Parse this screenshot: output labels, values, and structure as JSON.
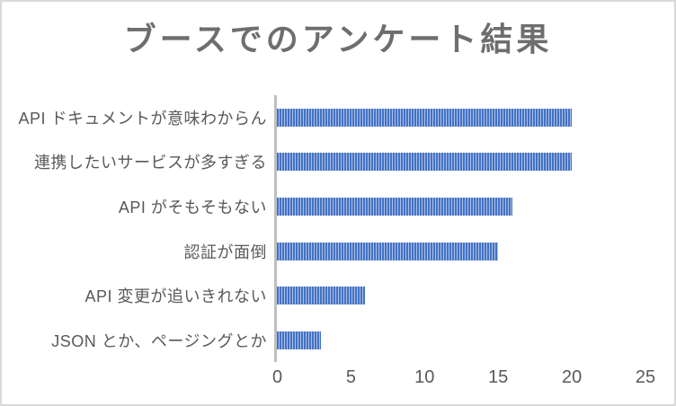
{
  "window": {
    "background": "#ffffff",
    "border_color": "#d9d9d9"
  },
  "chart_data": {
    "type": "bar",
    "orientation": "horizontal",
    "title": "ブースでのアンケート結果",
    "categories": [
      "API ドキュメントが意味わからん",
      "連携したいサービスが多すぎる",
      "API がそもそもない",
      "認証が面倒",
      "API 変更が追いきれない",
      "JSON とか、ページングとか"
    ],
    "values": [
      20,
      20,
      16,
      15,
      6,
      3
    ],
    "xlabel": "",
    "ylabel": "",
    "xlim": [
      0,
      25
    ],
    "x_ticks": [
      0,
      5,
      10,
      15,
      20,
      25
    ],
    "grid": false,
    "legend": false,
    "bar_pattern": "vertical-stripes",
    "colors": {
      "bar_stripe_dark": "#4472c4",
      "bar_stripe_light": "#adc0e9",
      "axis_line": "#bfbfbf",
      "title_text": "#6e6e6e",
      "category_text": "#595959",
      "tick_text": "#595959"
    }
  }
}
